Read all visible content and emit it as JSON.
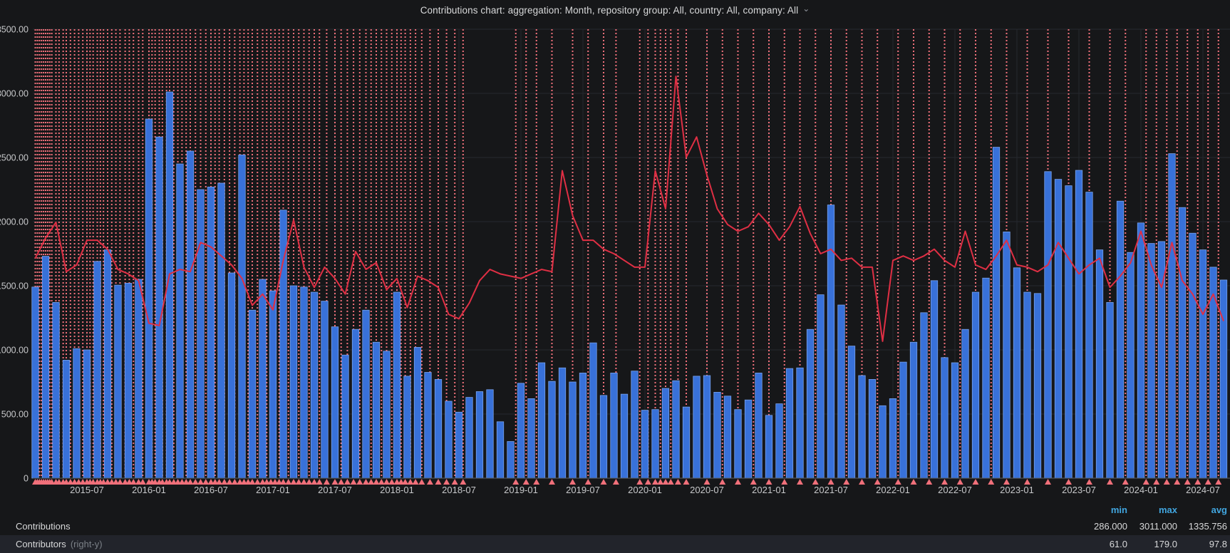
{
  "panel": {
    "title": "Contributions chart: aggregation: Month, repository group: All, country: All, company: All",
    "chevron": "⌄"
  },
  "legend": {
    "headers": {
      "min": "min",
      "max": "max",
      "avg": "avg"
    },
    "rows": [
      {
        "name": "Contributions",
        "suffix": "",
        "min": "286.000",
        "max": "3011.000",
        "avg": "1335.756"
      },
      {
        "name": "Contributors",
        "suffix": "(right-y)",
        "min": "61.0",
        "max": "179.0",
        "avg": "97.8"
      }
    ]
  },
  "chart_data": {
    "type": "bar",
    "title": "Contributions chart: aggregation: Month, repository group: All, country: All, company: All",
    "xlabel": "",
    "ylabel": "",
    "grid": true,
    "legend_position": "bottom",
    "x": [
      "2015-02",
      "2015-03",
      "2015-04",
      "2015-05",
      "2015-06",
      "2015-07",
      "2015-08",
      "2015-09",
      "2015-10",
      "2015-11",
      "2015-12",
      "2016-01",
      "2016-02",
      "2016-03",
      "2016-04",
      "2016-05",
      "2016-06",
      "2016-07",
      "2016-08",
      "2016-09",
      "2016-10",
      "2016-11",
      "2016-12",
      "2017-01",
      "2017-02",
      "2017-03",
      "2017-04",
      "2017-05",
      "2017-06",
      "2017-07",
      "2017-08",
      "2017-09",
      "2017-10",
      "2017-11",
      "2017-12",
      "2018-01",
      "2018-02",
      "2018-03",
      "2018-04",
      "2018-05",
      "2018-06",
      "2018-07",
      "2018-08",
      "2018-09",
      "2018-10",
      "2018-11",
      "2018-12",
      "2019-01",
      "2019-02",
      "2019-03",
      "2019-04",
      "2019-05",
      "2019-06",
      "2019-07",
      "2019-08",
      "2019-09",
      "2019-10",
      "2019-11",
      "2019-12",
      "2020-01",
      "2020-02",
      "2020-03",
      "2020-04",
      "2020-05",
      "2020-06",
      "2020-07",
      "2020-08",
      "2020-09",
      "2020-10",
      "2020-11",
      "2020-12",
      "2021-01",
      "2021-02",
      "2021-03",
      "2021-04",
      "2021-05",
      "2021-06",
      "2021-07",
      "2021-08",
      "2021-09",
      "2021-10",
      "2021-11",
      "2021-12",
      "2022-01",
      "2022-02",
      "2022-03",
      "2022-04",
      "2022-05",
      "2022-06",
      "2022-07",
      "2022-08",
      "2022-09",
      "2022-10",
      "2022-11",
      "2022-12",
      "2023-01",
      "2023-02",
      "2023-03",
      "2023-04",
      "2023-05",
      "2023-06",
      "2023-07",
      "2023-08",
      "2023-09",
      "2023-10",
      "2023-11",
      "2023-12",
      "2024-01",
      "2024-02",
      "2024-03",
      "2024-04",
      "2024-05",
      "2024-06",
      "2024-07",
      "2024-08",
      "2024-09"
    ],
    "series": [
      {
        "name": "Contributions",
        "type": "bar",
        "axis": "left",
        "values": [
          1490,
          1730,
          1370,
          920,
          1010,
          1000,
          1690,
          1780,
          1505,
          1520,
          1550,
          2800,
          2660,
          3011,
          2450,
          2550,
          2250,
          2270,
          2300,
          1600,
          2520,
          1310,
          1550,
          1460,
          2090,
          1500,
          1490,
          1450,
          1380,
          1180,
          960,
          1160,
          1310,
          1060,
          990,
          1450,
          795,
          1020,
          825,
          770,
          600,
          515,
          630,
          675,
          690,
          440,
          286,
          740,
          620,
          900,
          755,
          860,
          750,
          820,
          1055,
          645,
          820,
          655,
          835,
          530,
          535,
          700,
          760,
          555,
          795,
          800,
          670,
          640,
          535,
          610,
          820,
          490,
          580,
          855,
          860,
          1160,
          1430,
          2130,
          1350,
          1030,
          800,
          770,
          565,
          620,
          905,
          1060,
          1290,
          1540,
          940,
          900,
          1160,
          1450,
          1560,
          2580,
          1920,
          1640,
          1450,
          1440,
          2390,
          2330,
          2280,
          2400,
          2230,
          1780,
          1370,
          2160,
          1760,
          1990,
          1830,
          1845,
          2530,
          2110,
          1910,
          1780,
          1645,
          1545
        ],
        "stats": {
          "min": 286.0,
          "max": 3011.0,
          "avg": 1335.756
        }
      },
      {
        "name": "Contributors",
        "type": "line",
        "axis": "right",
        "values": [
          98,
          107,
          114,
          92,
          95,
          106,
          106,
          102,
          93,
          91,
          88,
          69,
          68,
          91,
          93,
          92,
          105,
          103,
          99,
          95,
          89,
          77,
          82,
          75,
          97,
          115,
          94,
          85,
          94,
          89,
          82,
          101,
          93,
          96,
          84,
          89,
          76,
          90,
          88,
          85,
          73,
          71,
          78,
          88,
          93,
          91,
          90,
          89,
          91,
          93,
          92,
          137,
          117,
          106,
          106,
          102,
          100,
          97,
          94,
          94,
          137,
          120,
          179,
          143,
          152,
          135,
          120,
          113,
          110,
          112,
          118,
          113,
          106,
          112,
          121,
          109,
          100,
          102,
          97,
          98,
          94,
          94,
          61,
          97,
          99,
          97,
          99,
          102,
          97,
          94,
          110,
          95,
          93,
          99,
          106,
          95,
          94,
          92,
          95,
          105,
          98,
          91,
          95,
          98,
          85,
          90,
          96,
          110,
          95,
          85,
          105,
          88,
          82,
          73,
          82,
          70
        ],
        "stats": {
          "min": 61.0,
          "max": 179.0,
          "avg": 97.8
        }
      }
    ],
    "left_y": {
      "min": 0,
      "max": 3500,
      "ticks": [
        {
          "value": 3500,
          "label": "3500.00"
        },
        {
          "value": 3000,
          "label": "3000.00"
        },
        {
          "value": 2500,
          "label": "2500.00"
        },
        {
          "value": 2000,
          "label": "2000.00"
        },
        {
          "value": 1500,
          "label": "1500.00"
        },
        {
          "value": 1000,
          "label": "1000.00"
        },
        {
          "value": 500,
          "label": "500.00"
        },
        {
          "value": 0,
          "label": "0"
        }
      ]
    },
    "right_y": {
      "min": 0,
      "max": 200,
      "hidden": true
    },
    "x_axis": {
      "labels": [
        "2015-07",
        "2016-01",
        "2016-07",
        "2017-01",
        "2017-07",
        "2018-01",
        "2018-07",
        "2019-01",
        "2019-07",
        "2020-01",
        "2020-07",
        "2021-01",
        "2021-07",
        "2022-01",
        "2022-07",
        "2023-01",
        "2023-07",
        "2024-01",
        "2024-07"
      ],
      "first_label_month_index": 5,
      "label_step": 6
    },
    "annotations": {
      "positions_month_index": [
        0,
        0.2,
        0.4,
        0.6,
        0.8,
        1,
        1.2,
        1.4,
        1.6,
        2,
        2.3,
        2.7,
        3,
        3.4,
        3.8,
        4.2,
        4.6,
        5,
        5.3,
        5.6,
        6,
        6.3,
        6.6,
        7,
        7.4,
        7.8,
        8.2,
        8.7,
        9.1,
        9.5,
        10,
        10.4,
        11,
        11.3,
        11.6,
        12,
        12.3,
        12.7,
        13,
        13.4,
        13.8,
        14.2,
        14.6,
        15,
        15.5,
        16,
        16.5,
        17,
        17.4,
        17.8,
        18.3,
        18.8,
        19.3,
        19.8,
        20.2,
        20.6,
        21,
        21.5,
        22,
        22.4,
        22.8,
        23.2,
        23.6,
        24,
        24.5,
        25,
        25.5,
        26,
        26.5,
        27,
        27.5,
        28.2,
        29,
        29.6,
        30.2,
        30.8,
        31.4,
        32,
        32.5,
        33,
        33.5,
        34,
        34.5,
        35,
        35.4,
        35.8,
        36.3,
        36.8,
        37.4,
        38.2,
        39,
        39.8,
        40.6,
        41.4,
        46.5,
        47.5,
        48.5,
        50,
        52,
        53.5,
        55,
        56.2,
        58.5,
        59.3,
        60,
        60.5,
        61,
        61.5,
        62.2,
        63,
        65,
        66.5,
        68,
        69.5,
        71,
        72.5,
        74,
        75.5,
        77,
        78.5,
        80,
        81.5,
        83.5,
        85,
        86.5,
        88,
        89.5,
        91,
        92.5,
        94,
        96,
        98,
        100,
        102,
        104,
        105.5,
        107.5,
        108.5,
        109.5,
        110.5,
        111.5,
        112.5,
        113.5,
        114.5
      ]
    },
    "colors": {
      "bar_fill": "#3871d9",
      "bar_stroke": "#7da6ee",
      "line": "#e02f44",
      "annotation": "#f0707a",
      "grid": "#26282e",
      "axis_line": "#5c6066",
      "axis_text": "#c7c8ca",
      "legend_header": "#41a6e0",
      "background": "#161719",
      "legend_alt_row": "#22242b"
    }
  }
}
